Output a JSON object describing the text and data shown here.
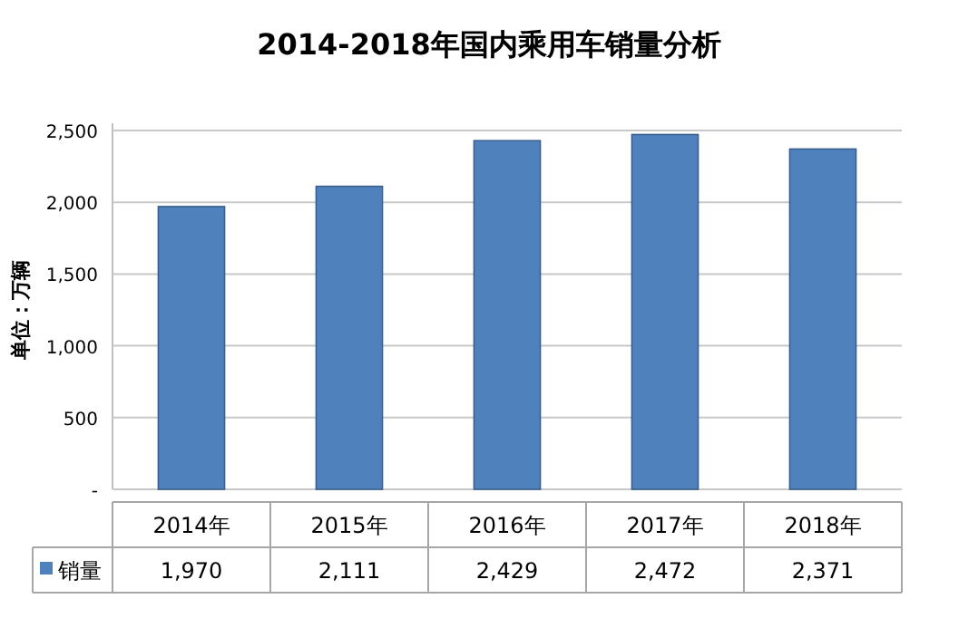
{
  "chart_data": {
    "type": "bar",
    "title": "2014-2018年国内乘用车销量分析",
    "ylabel": "单位：万辆",
    "categories": [
      "2014年",
      "2015年",
      "2016年",
      "2017年",
      "2018年"
    ],
    "series": [
      {
        "name": "销量",
        "color": "#4f81bd",
        "values": [
          1970,
          2111,
          2429,
          2472,
          2371
        ],
        "value_labels": [
          "1,970",
          "2,111",
          "2,429",
          "2,472",
          "2,371"
        ]
      }
    ],
    "ylim": [
      0,
      2500
    ],
    "yticks": [
      {
        "value": 0,
        "label": "-"
      },
      500,
      {
        "value": 1000,
        "label": "1,000"
      },
      {
        "value": 1500,
        "label": "1,500"
      },
      {
        "value": 2000,
        "label": "2,000"
      },
      {
        "value": 2500,
        "label": "2,500"
      }
    ],
    "grid": "y",
    "legend": "bottom"
  }
}
